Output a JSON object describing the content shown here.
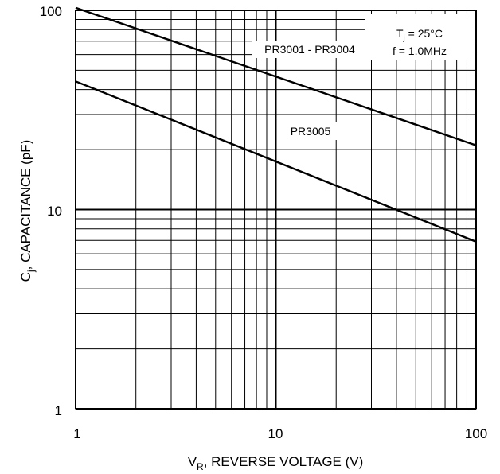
{
  "chart_data": {
    "type": "line",
    "x_scale": "log",
    "y_scale": "log",
    "xlim": [
      1,
      100
    ],
    "ylim": [
      1,
      100
    ],
    "grid": true,
    "x_ticks": [
      "1",
      "10",
      "100"
    ],
    "y_ticks": [
      "1",
      "10",
      "100"
    ],
    "xlabel": {
      "main": "V",
      "sub": "R",
      "rest": ", REVERSE VOLTAGE (V)"
    },
    "ylabel": {
      "main": "C",
      "sub": "j",
      "rest": ", CAPACITANCE (pF)"
    },
    "conditions": {
      "line1": {
        "main": "T",
        "sub": "j",
        "rest": " = 25°C"
      },
      "line2": "f = 1.0MHz"
    },
    "series": [
      {
        "name": "PR3001 - PR3004",
        "x": [
          1,
          100
        ],
        "y": [
          103,
          21
        ]
      },
      {
        "name": "PR3005",
        "x": [
          1,
          100
        ],
        "y": [
          44,
          6.9
        ]
      }
    ]
  }
}
